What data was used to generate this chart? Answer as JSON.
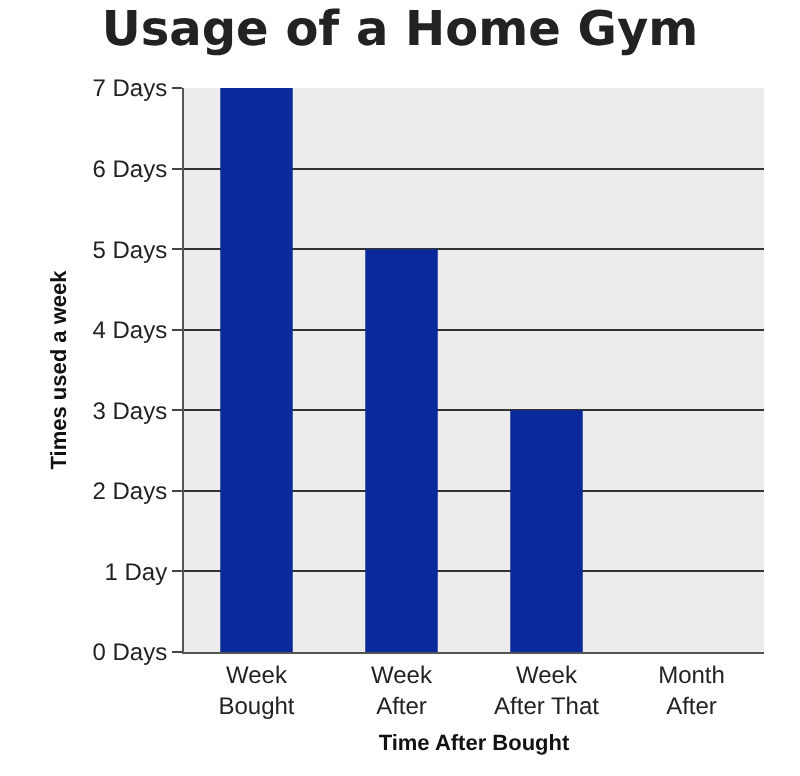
{
  "chart_data": {
    "type": "bar",
    "title": "Usage of a Home Gym",
    "xlabel": "Time After Bought",
    "ylabel": "Times used a week",
    "categories": [
      "Week Bought",
      "Week After",
      "Week After That",
      "Month After"
    ],
    "values": [
      7,
      5,
      3,
      0
    ],
    "color": "#0a2a9c",
    "ylim": [
      0,
      7
    ],
    "yticks": [
      {
        "value": 0,
        "label": "0 Days"
      },
      {
        "value": 1,
        "label": "1 Day"
      },
      {
        "value": 2,
        "label": "2 Days"
      },
      {
        "value": 3,
        "label": "3 Days"
      },
      {
        "value": 4,
        "label": "4 Days"
      },
      {
        "value": 5,
        "label": "5 Days"
      },
      {
        "value": 6,
        "label": "6 Days"
      },
      {
        "value": 7,
        "label": "7 Days"
      }
    ],
    "grid": "y"
  }
}
